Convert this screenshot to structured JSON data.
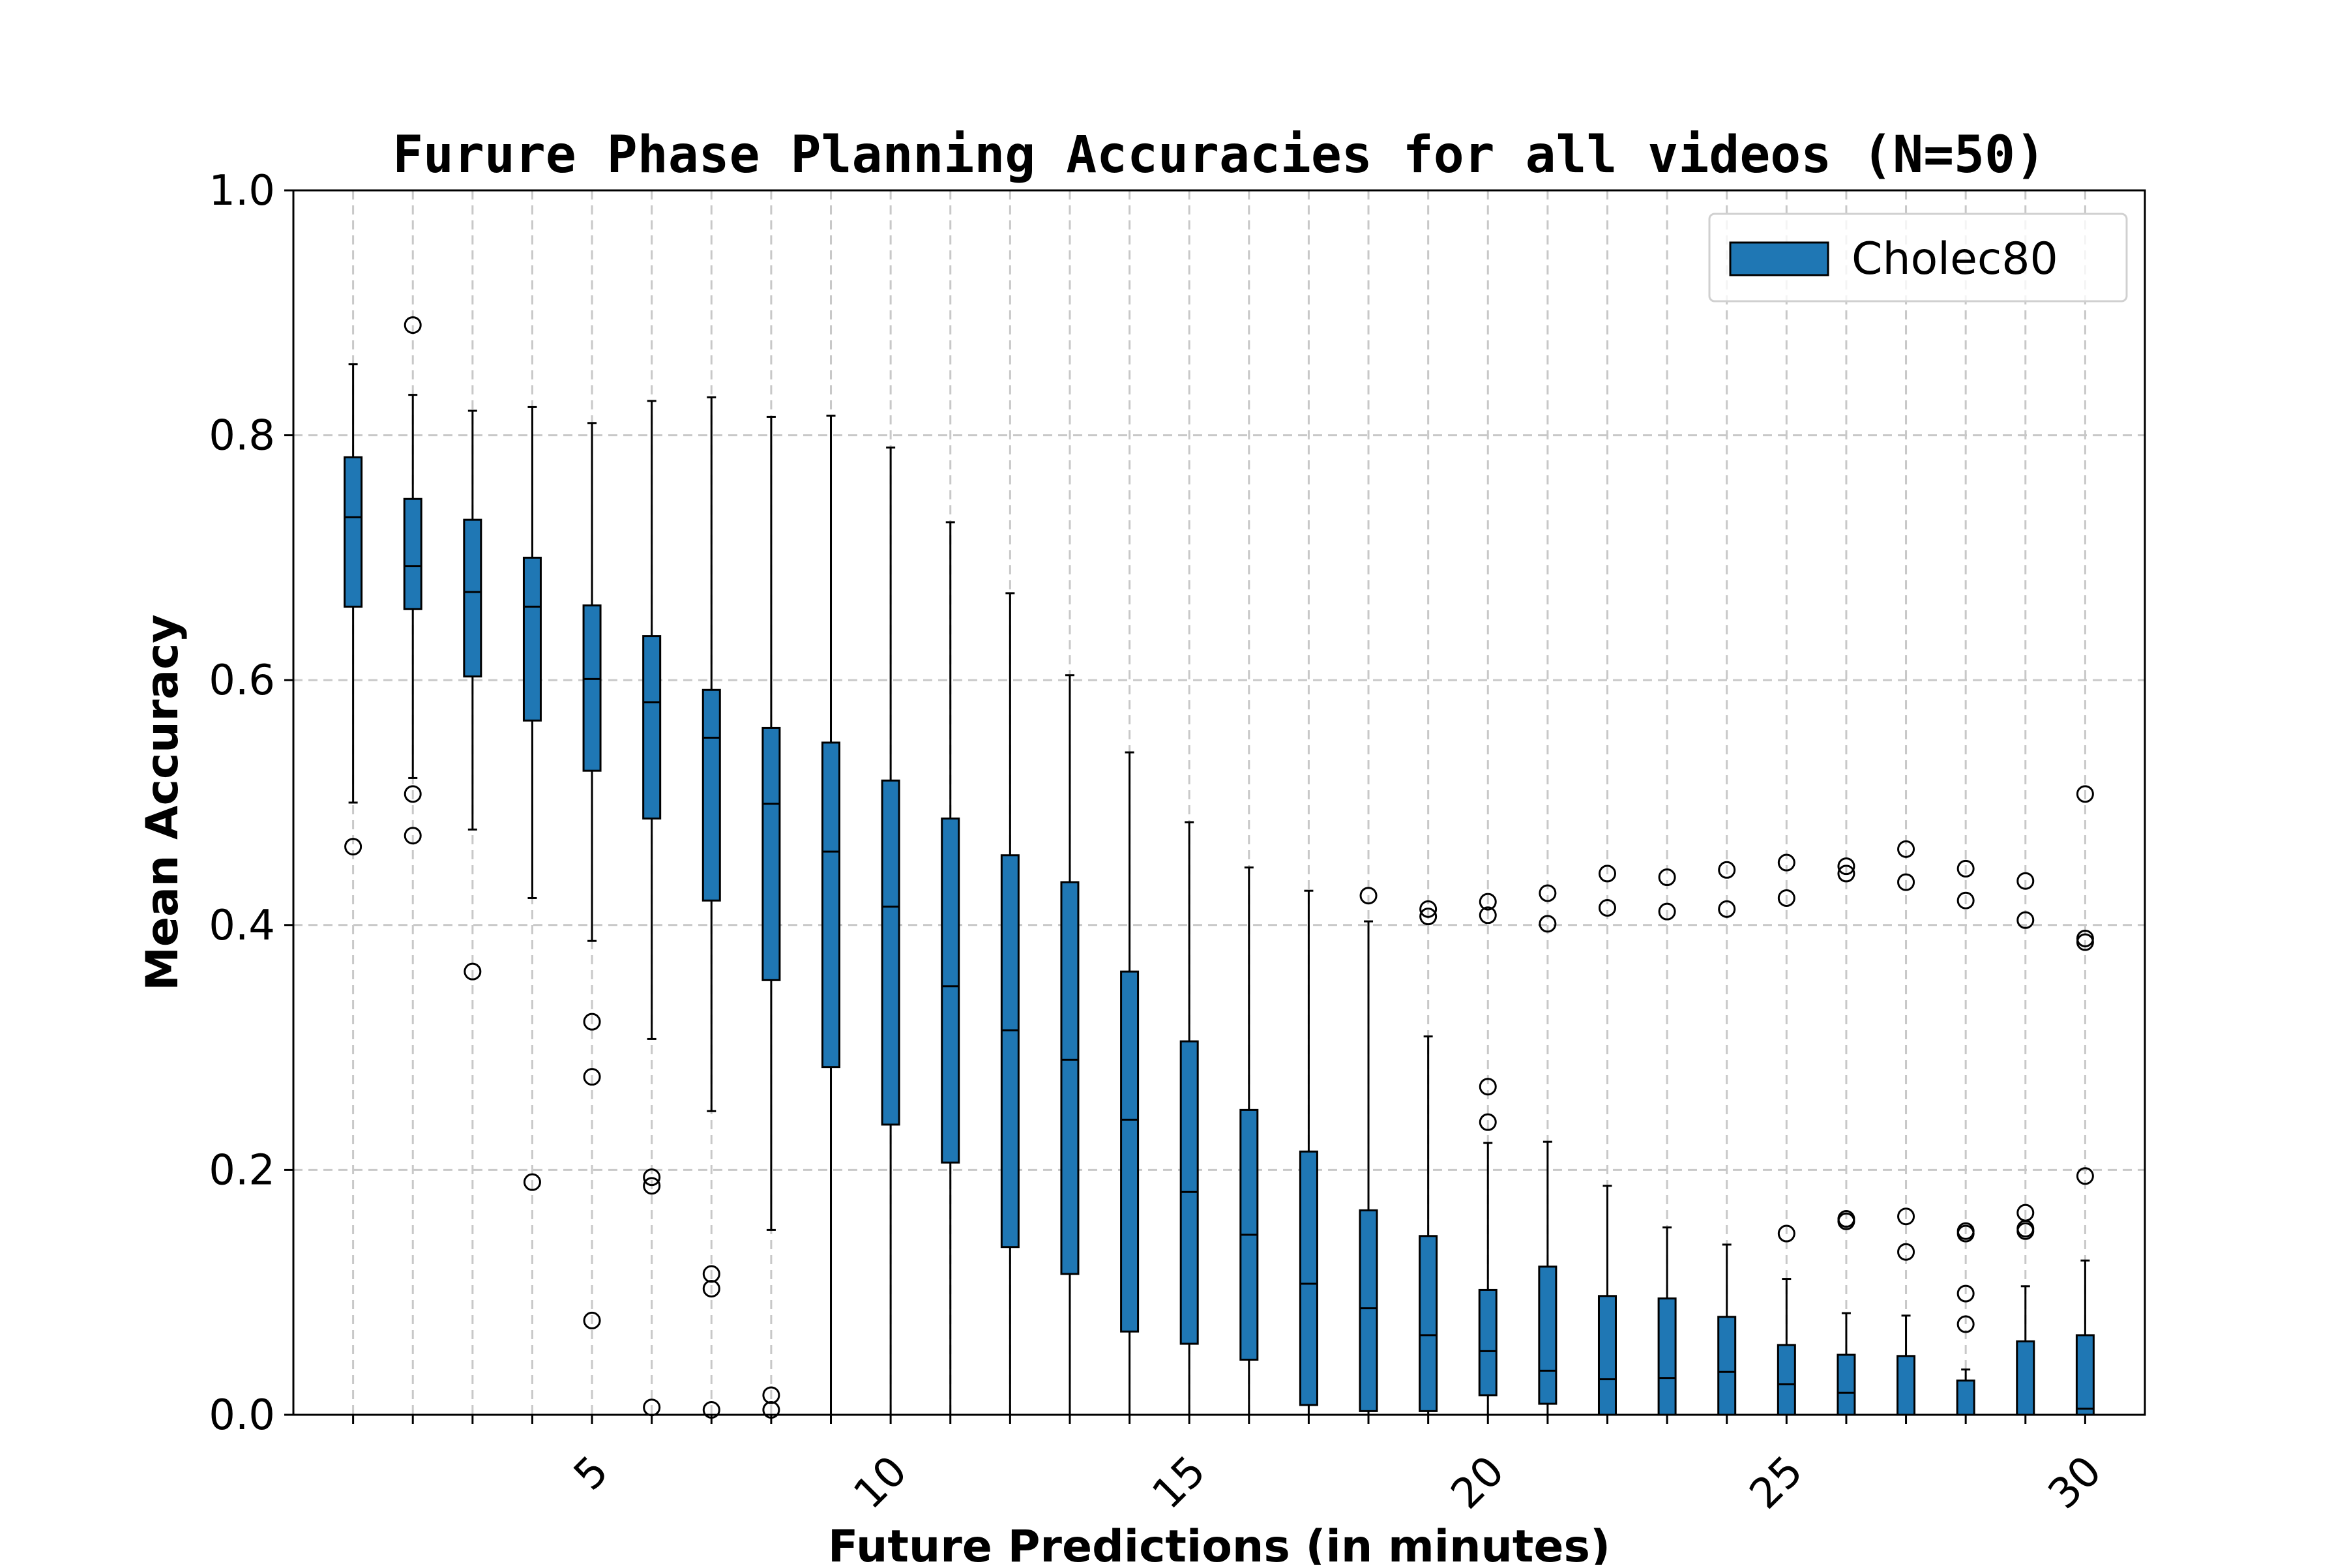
{
  "chart_data": {
    "type": "box",
    "title": "Furure Phase Planning Accuracies for all videos (N=50)",
    "xlabel": "Future Predictions (in minutes)",
    "ylabel": "Mean Accuracy",
    "ylim": [
      0.0,
      1.0
    ],
    "xlim": [
      0,
      31
    ],
    "yticks": [
      0.0,
      0.2,
      0.4,
      0.6,
      0.8,
      1.0
    ],
    "ytick_labels": [
      "0.0",
      "0.2",
      "0.4",
      "0.6",
      "0.8",
      "1.0"
    ],
    "xticks": [
      5,
      10,
      15,
      20,
      25,
      30
    ],
    "xtick_labels": [
      "5",
      "10",
      "15",
      "20",
      "25",
      "30"
    ],
    "grid": true,
    "legend": {
      "position": "top-right",
      "entries": [
        {
          "label": "Cholec80",
          "color": "#1f77b4"
        }
      ]
    },
    "box_color": "#1f77b4",
    "boxes": [
      {
        "x": 1,
        "whislo": 0.5,
        "q1": 0.66,
        "med": 0.733,
        "q3": 0.782,
        "whishi": 0.858,
        "fliers": [
          0.464
        ]
      },
      {
        "x": 2,
        "whislo": 0.52,
        "q1": 0.658,
        "med": 0.693,
        "q3": 0.748,
        "whishi": 0.833,
        "fliers": [
          0.89,
          0.507,
          0.473
        ]
      },
      {
        "x": 3,
        "whislo": 0.478,
        "q1": 0.603,
        "med": 0.672,
        "q3": 0.731,
        "whishi": 0.82,
        "fliers": [
          0.362
        ]
      },
      {
        "x": 4,
        "whislo": 0.422,
        "q1": 0.567,
        "med": 0.66,
        "q3": 0.7,
        "whishi": 0.823,
        "fliers": [
          0.19
        ]
      },
      {
        "x": 5,
        "whislo": 0.387,
        "q1": 0.526,
        "med": 0.601,
        "q3": 0.661,
        "whishi": 0.81,
        "fliers": [
          0.321,
          0.276,
          0.077
        ]
      },
      {
        "x": 6,
        "whislo": 0.307,
        "q1": 0.487,
        "med": 0.582,
        "q3": 0.636,
        "whishi": 0.828,
        "fliers": [
          0.194,
          0.187,
          0.006
        ]
      },
      {
        "x": 7,
        "whislo": 0.248,
        "q1": 0.42,
        "med": 0.553,
        "q3": 0.592,
        "whishi": 0.831,
        "fliers": [
          0.115,
          0.103,
          0.004
        ]
      },
      {
        "x": 8,
        "whislo": 0.151,
        "q1": 0.355,
        "med": 0.499,
        "q3": 0.561,
        "whishi": 0.815,
        "fliers": [
          0.016,
          0.004
        ]
      },
      {
        "x": 9,
        "whislo": 0.0,
        "q1": 0.284,
        "med": 0.46,
        "q3": 0.549,
        "whishi": 0.816,
        "fliers": []
      },
      {
        "x": 10,
        "whislo": 0.0,
        "q1": 0.237,
        "med": 0.415,
        "q3": 0.518,
        "whishi": 0.79,
        "fliers": []
      },
      {
        "x": 11,
        "whislo": 0.0,
        "q1": 0.206,
        "med": 0.35,
        "q3": 0.487,
        "whishi": 0.729,
        "fliers": []
      },
      {
        "x": 12,
        "whislo": 0.0,
        "q1": 0.137,
        "med": 0.314,
        "q3": 0.457,
        "whishi": 0.671,
        "fliers": []
      },
      {
        "x": 13,
        "whislo": 0.0,
        "q1": 0.115,
        "med": 0.29,
        "q3": 0.435,
        "whishi": 0.604,
        "fliers": []
      },
      {
        "x": 14,
        "whislo": 0.0,
        "q1": 0.068,
        "med": 0.241,
        "q3": 0.362,
        "whishi": 0.541,
        "fliers": []
      },
      {
        "x": 15,
        "whislo": 0.0,
        "q1": 0.058,
        "med": 0.182,
        "q3": 0.305,
        "whishi": 0.484,
        "fliers": []
      },
      {
        "x": 16,
        "whislo": 0.0,
        "q1": 0.045,
        "med": 0.147,
        "q3": 0.249,
        "whishi": 0.447,
        "fliers": []
      },
      {
        "x": 17,
        "whislo": 0.0,
        "q1": 0.008,
        "med": 0.107,
        "q3": 0.215,
        "whishi": 0.428,
        "fliers": []
      },
      {
        "x": 18,
        "whislo": 0.0,
        "q1": 0.003,
        "med": 0.087,
        "q3": 0.167,
        "whishi": 0.403,
        "fliers": [
          0.424
        ]
      },
      {
        "x": 19,
        "whislo": 0.0,
        "q1": 0.003,
        "med": 0.065,
        "q3": 0.146,
        "whishi": 0.309,
        "fliers": [
          0.413,
          0.407
        ]
      },
      {
        "x": 20,
        "whislo": 0.0,
        "q1": 0.016,
        "med": 0.052,
        "q3": 0.102,
        "whishi": 0.222,
        "fliers": [
          0.419,
          0.408,
          0.268,
          0.239
        ]
      },
      {
        "x": 21,
        "whislo": 0.0,
        "q1": 0.009,
        "med": 0.036,
        "q3": 0.121,
        "whishi": 0.223,
        "fliers": [
          0.426,
          0.401
        ]
      },
      {
        "x": 22,
        "whislo": 0.0,
        "q1": 0.0,
        "med": 0.029,
        "q3": 0.097,
        "whishi": 0.187,
        "fliers": [
          0.442,
          0.414
        ]
      },
      {
        "x": 23,
        "whislo": 0.0,
        "q1": 0.0,
        "med": 0.03,
        "q3": 0.095,
        "whishi": 0.153,
        "fliers": [
          0.439,
          0.411
        ]
      },
      {
        "x": 24,
        "whislo": 0.0,
        "q1": 0.0,
        "med": 0.035,
        "q3": 0.08,
        "whishi": 0.139,
        "fliers": [
          0.445,
          0.413
        ]
      },
      {
        "x": 25,
        "whislo": 0.0,
        "q1": 0.0,
        "med": 0.025,
        "q3": 0.057,
        "whishi": 0.111,
        "fliers": [
          0.451,
          0.422,
          0.148
        ]
      },
      {
        "x": 26,
        "whislo": 0.0,
        "q1": 0.0,
        "med": 0.018,
        "q3": 0.049,
        "whishi": 0.083,
        "fliers": [
          0.448,
          0.442,
          0.16,
          0.158
        ]
      },
      {
        "x": 27,
        "whislo": 0.0,
        "q1": 0.0,
        "med": 0.0,
        "q3": 0.048,
        "whishi": 0.081,
        "fliers": [
          0.462,
          0.435,
          0.162,
          0.133
        ]
      },
      {
        "x": 28,
        "whislo": 0.0,
        "q1": 0.0,
        "med": 0.0,
        "q3": 0.028,
        "whishi": 0.037,
        "fliers": [
          0.446,
          0.42,
          0.15,
          0.148,
          0.099,
          0.074
        ]
      },
      {
        "x": 29,
        "whislo": 0.0,
        "q1": 0.0,
        "med": 0.0,
        "q3": 0.06,
        "whishi": 0.105,
        "fliers": [
          0.436,
          0.404,
          0.165,
          0.152,
          0.15
        ]
      },
      {
        "x": 30,
        "whislo": 0.0,
        "q1": 0.0,
        "med": 0.005,
        "q3": 0.065,
        "whishi": 0.126,
        "fliers": [
          0.507,
          0.389,
          0.386,
          0.195
        ]
      }
    ]
  }
}
